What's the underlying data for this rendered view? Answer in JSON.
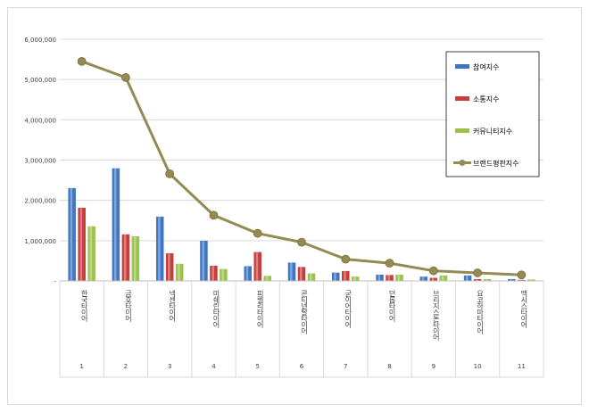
{
  "chart_data": {
    "type": "bar",
    "title": "",
    "xlabel": "",
    "ylabel": "",
    "ylim": [
      0,
      6000000
    ],
    "yticks": [
      0,
      1000000,
      2000000,
      3000000,
      4000000,
      5000000,
      6000000
    ],
    "ytick_labels": [
      "-",
      "1,000,000",
      "2,000,000",
      "3,000,000",
      "4,000,000",
      "5,000,000",
      "6,000,000"
    ],
    "categories": [
      "한국타이어",
      "금호타이어",
      "넥센타이어",
      "미쉐린타이어",
      "피렐리타이어",
      "콘티넨탈타이어",
      "굳이어타이어",
      "던롭타이어",
      "브리지스톤타이어",
      "요코하마타이어",
      "맥시스타이어"
    ],
    "ranks": [
      "1",
      "2",
      "3",
      "4",
      "5",
      "6",
      "7",
      "8",
      "9",
      "10",
      "11"
    ],
    "series": [
      {
        "name": "참여지수",
        "kind": "bar",
        "color": "#3f75c4",
        "values": [
          2300000,
          2790000,
          1590000,
          990000,
          360000,
          450000,
          200000,
          150000,
          100000,
          130000,
          40000
        ]
      },
      {
        "name": "소통지수",
        "kind": "bar",
        "color": "#c83c3c",
        "values": [
          1810000,
          1150000,
          680000,
          370000,
          710000,
          340000,
          240000,
          140000,
          70000,
          40000,
          20000
        ]
      },
      {
        "name": "커뮤니티지수",
        "kind": "bar",
        "color": "#9bc34a",
        "values": [
          1350000,
          1100000,
          420000,
          290000,
          120000,
          180000,
          100000,
          150000,
          130000,
          40000,
          30000
        ]
      },
      {
        "name": "브랜드평판지수",
        "kind": "line",
        "color": "#948a54",
        "values": [
          5450000,
          5050000,
          2660000,
          1630000,
          1180000,
          960000,
          540000,
          440000,
          250000,
          200000,
          150000
        ]
      }
    ],
    "grid": true,
    "legend": "right"
  }
}
